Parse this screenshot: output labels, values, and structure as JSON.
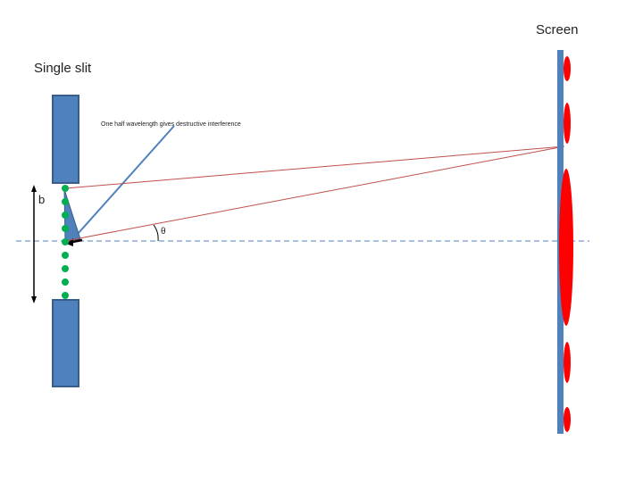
{
  "labels": {
    "screen": "Screen",
    "single_slit": "Single slit",
    "annotation": "One half wavelength gives destructive interference",
    "slit_width": "b",
    "angle": "θ"
  },
  "colors": {
    "barrier": "#4f81bd",
    "barrier_stroke": "#385d8a",
    "screen_bar": "#4f81bd",
    "fringe": "#ff0000",
    "ray": "#c0504d",
    "wavelet_dot": "#00b050",
    "axis_dash": "#4f81bd",
    "pointer_line": "#4f81bd",
    "text": "#222222"
  },
  "wavelet_sources_count": 9
}
